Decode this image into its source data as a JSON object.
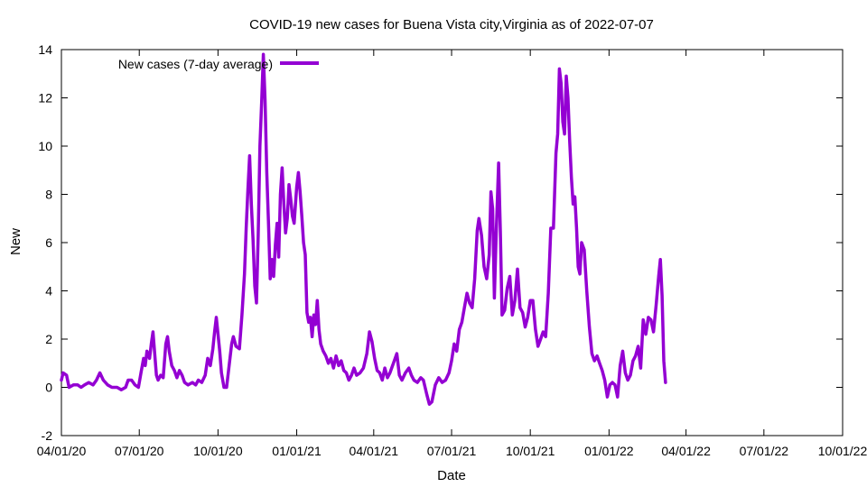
{
  "chart_data": {
    "type": "line",
    "title": "COVID-19 new cases for Buena Vista city,Virginia as of 2022-07-07",
    "xlabel": "Date",
    "ylabel": "New",
    "ylim": [
      -2,
      14
    ],
    "yticks": [
      -2,
      0,
      2,
      4,
      6,
      8,
      10,
      12,
      14
    ],
    "xlim": [
      "2020-04-01",
      "2022-10-01"
    ],
    "xticks": [
      {
        "date": "2020-04-01",
        "label": "04/01/20"
      },
      {
        "date": "2020-07-01",
        "label": "07/01/20"
      },
      {
        "date": "2020-10-01",
        "label": "10/01/20"
      },
      {
        "date": "2021-01-01",
        "label": "01/01/21"
      },
      {
        "date": "2021-04-01",
        "label": "04/01/21"
      },
      {
        "date": "2021-07-01",
        "label": "07/01/21"
      },
      {
        "date": "2021-10-01",
        "label": "10/01/21"
      },
      {
        "date": "2022-01-01",
        "label": "01/01/22"
      },
      {
        "date": "2022-04-01",
        "label": "04/01/22"
      },
      {
        "date": "2022-07-01",
        "label": "07/01/22"
      },
      {
        "date": "2022-10-01",
        "label": "10/01/22"
      }
    ],
    "grid": false,
    "legend": "top-left",
    "series": [
      {
        "name": "New cases (7-day average)",
        "color": "#9400d3",
        "points": [
          [
            "2020-04-01",
            0.3
          ],
          [
            "2020-04-03",
            0.6
          ],
          [
            "2020-04-07",
            0.5
          ],
          [
            "2020-04-10",
            0.0
          ],
          [
            "2020-04-15",
            0.1
          ],
          [
            "2020-04-20",
            0.1
          ],
          [
            "2020-04-24",
            0.0
          ],
          [
            "2020-04-28",
            0.1
          ],
          [
            "2020-05-03",
            0.2
          ],
          [
            "2020-05-08",
            0.1
          ],
          [
            "2020-05-12",
            0.3
          ],
          [
            "2020-05-16",
            0.6
          ],
          [
            "2020-05-20",
            0.3
          ],
          [
            "2020-05-25",
            0.1
          ],
          [
            "2020-05-30",
            0.0
          ],
          [
            "2020-06-05",
            0.0
          ],
          [
            "2020-06-10",
            -0.1
          ],
          [
            "2020-06-15",
            0.0
          ],
          [
            "2020-06-18",
            0.3
          ],
          [
            "2020-06-22",
            0.3
          ],
          [
            "2020-06-26",
            0.1
          ],
          [
            "2020-06-30",
            0.0
          ],
          [
            "2020-07-03",
            0.6
          ],
          [
            "2020-07-06",
            1.2
          ],
          [
            "2020-07-08",
            0.9
          ],
          [
            "2020-07-10",
            1.5
          ],
          [
            "2020-07-13",
            1.2
          ],
          [
            "2020-07-15",
            1.8
          ],
          [
            "2020-07-17",
            2.3
          ],
          [
            "2020-07-19",
            1.4
          ],
          [
            "2020-07-21",
            0.5
          ],
          [
            "2020-07-23",
            0.3
          ],
          [
            "2020-07-26",
            0.5
          ],
          [
            "2020-07-29",
            0.4
          ],
          [
            "2020-08-01",
            1.8
          ],
          [
            "2020-08-03",
            2.1
          ],
          [
            "2020-08-05",
            1.5
          ],
          [
            "2020-08-08",
            0.9
          ],
          [
            "2020-08-11",
            0.7
          ],
          [
            "2020-08-14",
            0.4
          ],
          [
            "2020-08-17",
            0.7
          ],
          [
            "2020-08-20",
            0.5
          ],
          [
            "2020-08-23",
            0.2
          ],
          [
            "2020-08-27",
            0.1
          ],
          [
            "2020-09-01",
            0.2
          ],
          [
            "2020-09-05",
            0.1
          ],
          [
            "2020-09-08",
            0.3
          ],
          [
            "2020-09-12",
            0.2
          ],
          [
            "2020-09-16",
            0.5
          ],
          [
            "2020-09-19",
            1.2
          ],
          [
            "2020-09-22",
            0.9
          ],
          [
            "2020-09-25",
            1.6
          ],
          [
            "2020-09-27",
            2.3
          ],
          [
            "2020-09-29",
            2.9
          ],
          [
            "2020-10-01",
            2.2
          ],
          [
            "2020-10-03",
            1.5
          ],
          [
            "2020-10-05",
            0.6
          ],
          [
            "2020-10-08",
            0.0
          ],
          [
            "2020-10-11",
            0.0
          ],
          [
            "2020-10-14",
            0.9
          ],
          [
            "2020-10-17",
            1.8
          ],
          [
            "2020-10-19",
            2.1
          ],
          [
            "2020-10-22",
            1.7
          ],
          [
            "2020-10-26",
            1.6
          ],
          [
            "2020-10-29",
            3.0
          ],
          [
            "2020-11-01",
            4.7
          ],
          [
            "2020-11-03",
            6.6
          ],
          [
            "2020-11-05",
            8.2
          ],
          [
            "2020-11-07",
            9.6
          ],
          [
            "2020-11-09",
            7.6
          ],
          [
            "2020-11-11",
            6.1
          ],
          [
            "2020-11-13",
            4.2
          ],
          [
            "2020-11-15",
            3.5
          ],
          [
            "2020-11-17",
            6.3
          ],
          [
            "2020-11-19",
            10.0
          ],
          [
            "2020-11-21",
            11.8
          ],
          [
            "2020-11-23",
            13.8
          ],
          [
            "2020-11-25",
            11.9
          ],
          [
            "2020-11-27",
            8.9
          ],
          [
            "2020-11-29",
            6.8
          ],
          [
            "2020-12-01",
            4.5
          ],
          [
            "2020-12-03",
            5.3
          ],
          [
            "2020-12-05",
            4.6
          ],
          [
            "2020-12-07",
            5.9
          ],
          [
            "2020-12-09",
            6.8
          ],
          [
            "2020-12-11",
            5.4
          ],
          [
            "2020-12-13",
            8.0
          ],
          [
            "2020-12-15",
            9.1
          ],
          [
            "2020-12-17",
            7.6
          ],
          [
            "2020-12-19",
            6.4
          ],
          [
            "2020-12-21",
            7.0
          ],
          [
            "2020-12-23",
            8.4
          ],
          [
            "2020-12-25",
            7.8
          ],
          [
            "2020-12-27",
            7.1
          ],
          [
            "2020-12-29",
            6.8
          ],
          [
            "2021-01-01",
            8.3
          ],
          [
            "2021-01-03",
            8.9
          ],
          [
            "2021-01-05",
            8.1
          ],
          [
            "2021-01-07",
            7.1
          ],
          [
            "2021-01-09",
            6.0
          ],
          [
            "2021-01-11",
            5.5
          ],
          [
            "2021-01-13",
            3.1
          ],
          [
            "2021-01-15",
            2.7
          ],
          [
            "2021-01-17",
            2.9
          ],
          [
            "2021-01-19",
            2.1
          ],
          [
            "2021-01-21",
            3.0
          ],
          [
            "2021-01-23",
            2.6
          ],
          [
            "2021-01-25",
            3.6
          ],
          [
            "2021-01-27",
            2.4
          ],
          [
            "2021-01-29",
            1.8
          ],
          [
            "2021-02-01",
            1.5
          ],
          [
            "2021-02-04",
            1.3
          ],
          [
            "2021-02-07",
            1.0
          ],
          [
            "2021-02-10",
            1.2
          ],
          [
            "2021-02-13",
            0.8
          ],
          [
            "2021-02-16",
            1.3
          ],
          [
            "2021-02-19",
            0.9
          ],
          [
            "2021-02-22",
            1.1
          ],
          [
            "2021-02-25",
            0.7
          ],
          [
            "2021-02-28",
            0.6
          ],
          [
            "2021-03-03",
            0.3
          ],
          [
            "2021-03-06",
            0.5
          ],
          [
            "2021-03-09",
            0.8
          ],
          [
            "2021-03-12",
            0.5
          ],
          [
            "2021-03-16",
            0.6
          ],
          [
            "2021-03-20",
            0.8
          ],
          [
            "2021-03-24",
            1.4
          ],
          [
            "2021-03-27",
            2.3
          ],
          [
            "2021-03-30",
            1.9
          ],
          [
            "2021-04-02",
            1.2
          ],
          [
            "2021-04-05",
            0.7
          ],
          [
            "2021-04-08",
            0.6
          ],
          [
            "2021-04-11",
            0.3
          ],
          [
            "2021-04-14",
            0.8
          ],
          [
            "2021-04-17",
            0.4
          ],
          [
            "2021-04-20",
            0.6
          ],
          [
            "2021-04-24",
            1.0
          ],
          [
            "2021-04-28",
            1.4
          ],
          [
            "2021-05-01",
            0.5
          ],
          [
            "2021-05-04",
            0.3
          ],
          [
            "2021-05-08",
            0.6
          ],
          [
            "2021-05-12",
            0.8
          ],
          [
            "2021-05-15",
            0.5
          ],
          [
            "2021-05-18",
            0.3
          ],
          [
            "2021-05-22",
            0.2
          ],
          [
            "2021-05-26",
            0.4
          ],
          [
            "2021-05-29",
            0.3
          ],
          [
            "2021-06-02",
            -0.3
          ],
          [
            "2021-06-05",
            -0.7
          ],
          [
            "2021-06-08",
            -0.6
          ],
          [
            "2021-06-12",
            0.1
          ],
          [
            "2021-06-16",
            0.4
          ],
          [
            "2021-06-20",
            0.2
          ],
          [
            "2021-06-24",
            0.3
          ],
          [
            "2021-06-28",
            0.6
          ],
          [
            "2021-07-01",
            1.1
          ],
          [
            "2021-07-04",
            1.8
          ],
          [
            "2021-07-07",
            1.5
          ],
          [
            "2021-07-10",
            2.4
          ],
          [
            "2021-07-13",
            2.7
          ],
          [
            "2021-07-16",
            3.3
          ],
          [
            "2021-07-19",
            3.9
          ],
          [
            "2021-07-22",
            3.5
          ],
          [
            "2021-07-25",
            3.3
          ],
          [
            "2021-07-28",
            4.5
          ],
          [
            "2021-07-31",
            6.5
          ],
          [
            "2021-08-02",
            7.0
          ],
          [
            "2021-08-05",
            6.3
          ],
          [
            "2021-08-08",
            5.0
          ],
          [
            "2021-08-11",
            4.5
          ],
          [
            "2021-08-14",
            5.5
          ],
          [
            "2021-08-16",
            8.1
          ],
          [
            "2021-08-18",
            7.4
          ],
          [
            "2021-08-20",
            3.7
          ],
          [
            "2021-08-22",
            6.2
          ],
          [
            "2021-08-25",
            9.3
          ],
          [
            "2021-08-27",
            6.5
          ],
          [
            "2021-08-29",
            3.0
          ],
          [
            "2021-09-01",
            3.2
          ],
          [
            "2021-09-04",
            4.1
          ],
          [
            "2021-09-07",
            4.6
          ],
          [
            "2021-09-10",
            3.0
          ],
          [
            "2021-09-13",
            3.6
          ],
          [
            "2021-09-16",
            4.9
          ],
          [
            "2021-09-19",
            3.3
          ],
          [
            "2021-09-22",
            3.1
          ],
          [
            "2021-09-25",
            2.5
          ],
          [
            "2021-09-28",
            2.9
          ],
          [
            "2021-10-01",
            3.6
          ],
          [
            "2021-10-04",
            3.6
          ],
          [
            "2021-10-07",
            2.4
          ],
          [
            "2021-10-10",
            1.7
          ],
          [
            "2021-10-13",
            2.0
          ],
          [
            "2021-10-16",
            2.3
          ],
          [
            "2021-10-19",
            2.1
          ],
          [
            "2021-10-22",
            3.9
          ],
          [
            "2021-10-25",
            6.6
          ],
          [
            "2021-10-28",
            6.6
          ],
          [
            "2021-10-31",
            9.7
          ],
          [
            "2021-11-02",
            10.5
          ],
          [
            "2021-11-04",
            13.2
          ],
          [
            "2021-11-06",
            12.6
          ],
          [
            "2021-11-08",
            11.0
          ],
          [
            "2021-11-10",
            10.5
          ],
          [
            "2021-11-12",
            12.9
          ],
          [
            "2021-11-14",
            12.0
          ],
          [
            "2021-11-16",
            10.2
          ],
          [
            "2021-11-18",
            8.7
          ],
          [
            "2021-11-20",
            7.6
          ],
          [
            "2021-11-22",
            7.9
          ],
          [
            "2021-11-24",
            6.6
          ],
          [
            "2021-11-26",
            5.0
          ],
          [
            "2021-11-28",
            4.7
          ],
          [
            "2021-11-30",
            6.0
          ],
          [
            "2021-12-03",
            5.7
          ],
          [
            "2021-12-06",
            4.0
          ],
          [
            "2021-12-09",
            2.5
          ],
          [
            "2021-12-12",
            1.4
          ],
          [
            "2021-12-15",
            1.1
          ],
          [
            "2021-12-18",
            1.3
          ],
          [
            "2021-12-21",
            1.0
          ],
          [
            "2021-12-24",
            0.7
          ],
          [
            "2021-12-27",
            0.3
          ],
          [
            "2021-12-30",
            -0.4
          ],
          [
            "2022-01-02",
            0.1
          ],
          [
            "2022-01-05",
            0.2
          ],
          [
            "2022-01-08",
            0.1
          ],
          [
            "2022-01-11",
            -0.4
          ],
          [
            "2022-01-14",
            0.9
          ],
          [
            "2022-01-17",
            1.5
          ],
          [
            "2022-01-20",
            0.6
          ],
          [
            "2022-01-23",
            0.3
          ],
          [
            "2022-01-26",
            0.5
          ],
          [
            "2022-01-29",
            1.1
          ],
          [
            "2022-02-01",
            1.3
          ],
          [
            "2022-02-04",
            1.7
          ],
          [
            "2022-02-07",
            0.8
          ],
          [
            "2022-02-10",
            2.8
          ],
          [
            "2022-02-13",
            2.2
          ],
          [
            "2022-02-16",
            2.9
          ],
          [
            "2022-02-19",
            2.8
          ],
          [
            "2022-02-22",
            2.3
          ],
          [
            "2022-02-25",
            3.4
          ],
          [
            "2022-02-28",
            4.6
          ],
          [
            "2022-03-02",
            5.3
          ],
          [
            "2022-03-04",
            3.8
          ],
          [
            "2022-03-06",
            1.1
          ],
          [
            "2022-03-08",
            0.2
          ]
        ]
      }
    ]
  }
}
